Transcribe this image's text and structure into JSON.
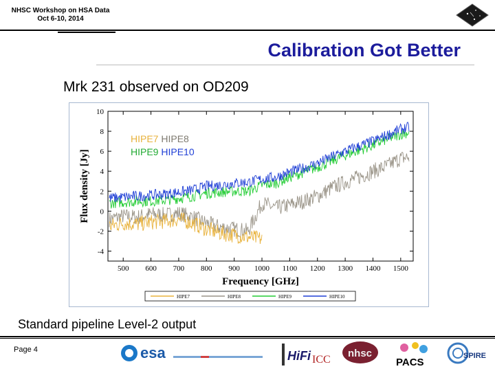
{
  "header": {
    "line1": "NHSC Workshop on HSA Data",
    "line2": "Oct 6-10, 2014"
  },
  "slide": {
    "title": "Calibration Got Better",
    "subtitle": "Mrk 231 observed on OD209",
    "caption": "Standard pipeline Level-2 output",
    "page": "Page 4"
  },
  "colors": {
    "title": "#1c1c9c",
    "hipe7": "#e8b23c",
    "hipe8": "#9a9488",
    "hipe9": "#22cc33",
    "hipe10": "#1f3fd6"
  },
  "footer_logos": {
    "esa": "esa",
    "hifi": "HiFi",
    "icc": "ICC",
    "nhsc": "nhsc",
    "pacs": "PACS",
    "spire": "SPIRE"
  },
  "chart_data": {
    "type": "line",
    "title": "",
    "xlabel": "Frequency [GHz]",
    "ylabel": "Flux density [Jy]",
    "xlim": [
      445,
      1545
    ],
    "ylim": [
      -5,
      10
    ],
    "xticks": [
      500,
      600,
      700,
      800,
      900,
      1000,
      1100,
      1200,
      1300,
      1400,
      1500
    ],
    "yticks": [
      -4,
      -2,
      0,
      2,
      4,
      6,
      8,
      10
    ],
    "legend_inline": [
      {
        "name": "HIPE7",
        "color": "#e8b23c"
      },
      {
        "name": "HIPE8",
        "color": "#9a9488"
      },
      {
        "name": "HIPE9",
        "color": "#22cc33"
      },
      {
        "name": "HIPE10",
        "color": "#1f3fd6"
      }
    ],
    "series": [
      {
        "name": "HIPE7",
        "x": [
          450,
          500,
          550,
          600,
          650,
          700,
          750,
          800,
          850,
          900,
          950,
          1000
        ],
        "values": [
          -1.5,
          -1.2,
          -1.3,
          -1.1,
          -1.0,
          -0.8,
          -1.2,
          -1.8,
          -2.2,
          -2.4,
          -2.6,
          -2.8
        ]
      },
      {
        "name": "HIPE8",
        "x": [
          450,
          500,
          550,
          600,
          650,
          700,
          750,
          800,
          850,
          900,
          950,
          1000,
          1050,
          1100,
          1150,
          1200,
          1250,
          1300,
          1350,
          1400,
          1450,
          1500,
          1530
        ],
        "values": [
          -0.8,
          -0.5,
          -0.6,
          -0.3,
          -0.4,
          -0.2,
          -0.6,
          -1.2,
          -1.6,
          -1.8,
          -2.0,
          0.8,
          0.3,
          0.6,
          1.0,
          1.5,
          2.3,
          2.9,
          3.4,
          4.0,
          4.5,
          5.3,
          5.4
        ]
      },
      {
        "name": "HIPE9",
        "x": [
          450,
          500,
          550,
          600,
          650,
          700,
          750,
          800,
          850,
          900,
          950,
          1000,
          1050,
          1100,
          1150,
          1200,
          1250,
          1300,
          1350,
          1400,
          1450,
          1500,
          1530
        ],
        "values": [
          0.8,
          0.9,
          1.0,
          1.0,
          1.1,
          1.3,
          1.5,
          1.8,
          1.9,
          2.0,
          2.0,
          2.6,
          2.8,
          3.4,
          3.9,
          4.4,
          5.0,
          5.6,
          6.1,
          6.6,
          7.2,
          7.7,
          7.9
        ]
      },
      {
        "name": "HIPE10",
        "x": [
          450,
          500,
          550,
          600,
          650,
          700,
          750,
          800,
          850,
          900,
          950,
          1000,
          1050,
          1100,
          1150,
          1200,
          1250,
          1300,
          1350,
          1400,
          1450,
          1500,
          1530
        ],
        "values": [
          1.3,
          1.4,
          1.5,
          1.6,
          1.7,
          1.9,
          2.1,
          2.5,
          2.6,
          2.8,
          2.9,
          3.2,
          3.4,
          3.9,
          4.3,
          4.8,
          5.4,
          6.0,
          6.5,
          7.0,
          7.6,
          8.2,
          8.4
        ]
      }
    ]
  }
}
